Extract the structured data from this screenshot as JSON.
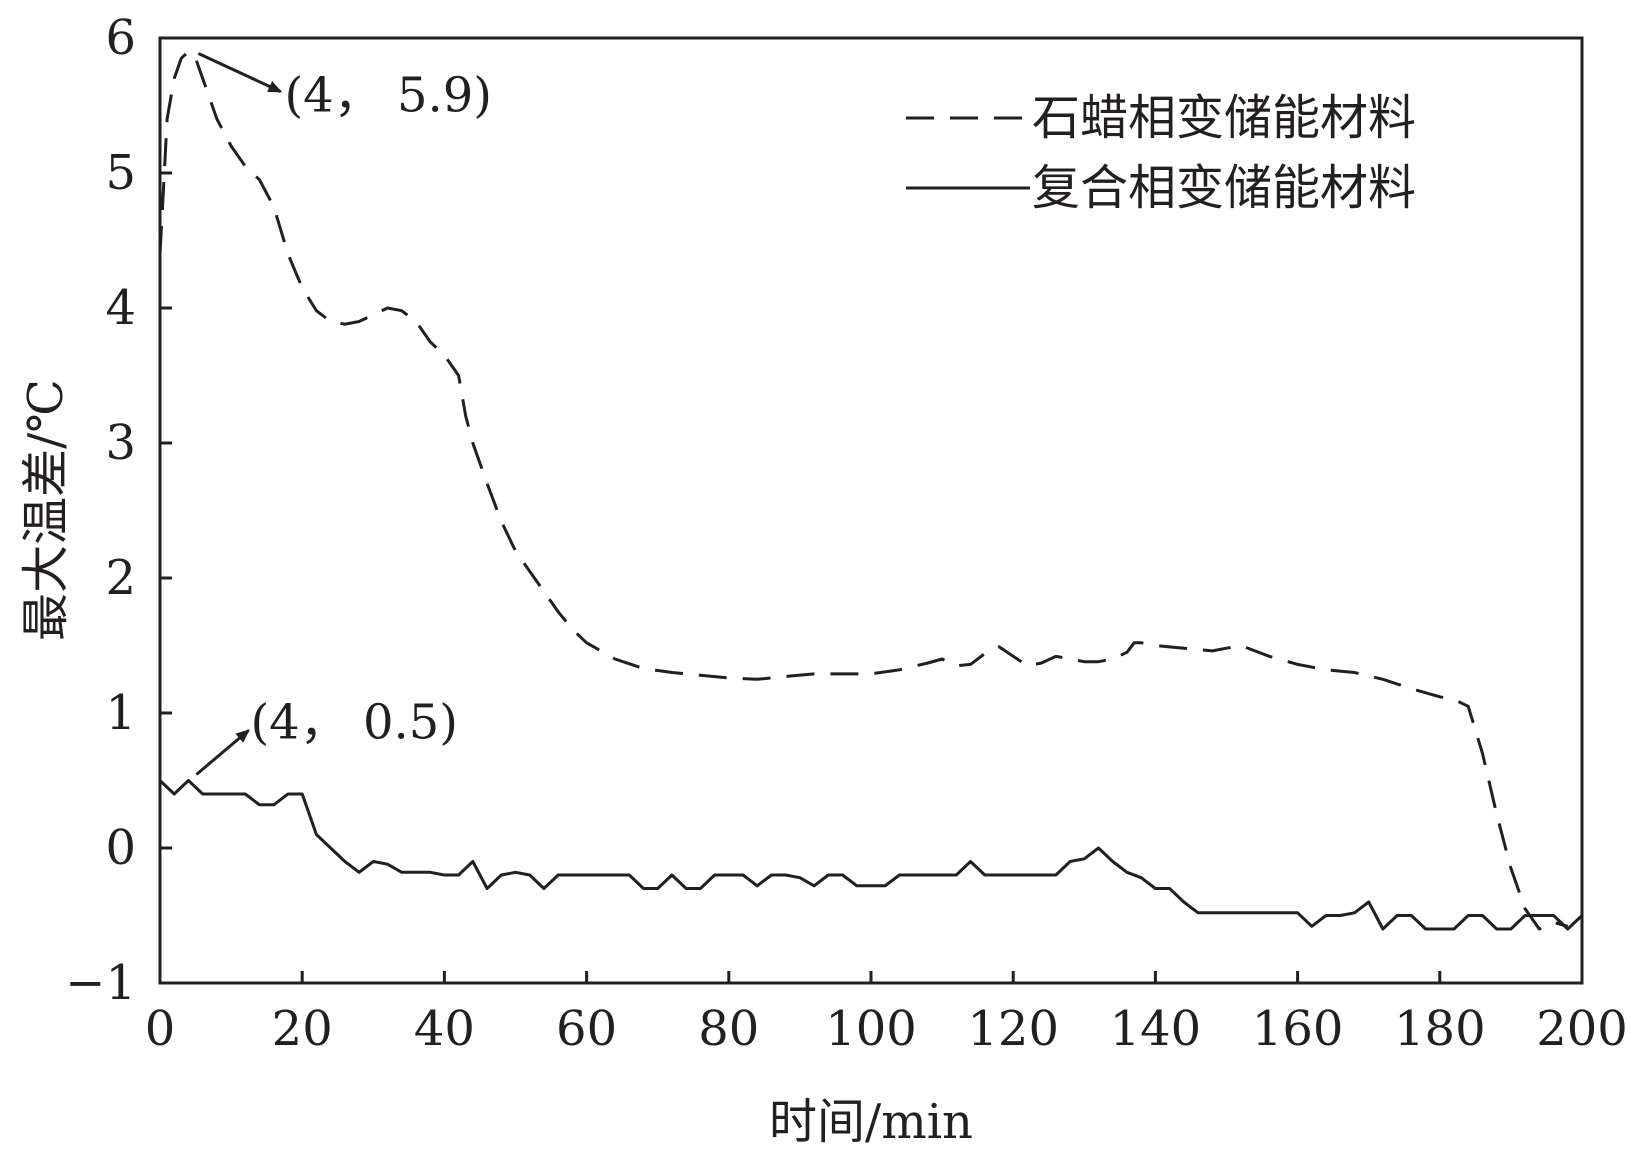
{
  "chart_data": {
    "type": "line",
    "xlabel": "时间/min",
    "ylabel": "最大温差/℃",
    "xlim": [
      0,
      200
    ],
    "ylim": [
      -1,
      6
    ],
    "xticks": [
      0,
      20,
      40,
      60,
      80,
      100,
      120,
      140,
      160,
      180,
      200
    ],
    "yticks": [
      -1,
      0,
      1,
      2,
      3,
      4,
      5,
      6
    ],
    "ytick_labels": [
      "−1",
      "0",
      "1",
      "2",
      "3",
      "4",
      "5",
      "6"
    ],
    "grid": false,
    "legend_position": "top-right",
    "series": [
      {
        "name": "石蜡相变储能材料",
        "style": "dashed",
        "color": "#231f20",
        "x": [
          0,
          0.5,
          1,
          2,
          3,
          4,
          5,
          6,
          8,
          10,
          12,
          14,
          16,
          18,
          20,
          22,
          24,
          26,
          28,
          30,
          32,
          34,
          36,
          38,
          40,
          42,
          43,
          44,
          46,
          48,
          50,
          52,
          54,
          56,
          58,
          60,
          64,
          68,
          72,
          76,
          80,
          84,
          88,
          92,
          96,
          100,
          104,
          108,
          110,
          112,
          114,
          116,
          118,
          120,
          122,
          124,
          126,
          128,
          130,
          132,
          134,
          136,
          137,
          138,
          140,
          144,
          148,
          150,
          152,
          154,
          156,
          160,
          164,
          168,
          172,
          176,
          180,
          182,
          184,
          186,
          188,
          190,
          192,
          194,
          196,
          198
        ],
        "y": [
          4.4,
          4.9,
          5.4,
          5.7,
          5.85,
          5.9,
          5.85,
          5.7,
          5.4,
          5.2,
          5.05,
          4.95,
          4.75,
          4.4,
          4.15,
          3.98,
          3.9,
          3.88,
          3.9,
          3.95,
          4.0,
          3.98,
          3.9,
          3.75,
          3.65,
          3.5,
          3.2,
          3.0,
          2.7,
          2.42,
          2.2,
          2.05,
          1.9,
          1.75,
          1.62,
          1.52,
          1.4,
          1.33,
          1.3,
          1.28,
          1.26,
          1.25,
          1.27,
          1.29,
          1.29,
          1.29,
          1.32,
          1.37,
          1.4,
          1.35,
          1.36,
          1.44,
          1.49,
          1.42,
          1.35,
          1.37,
          1.42,
          1.4,
          1.38,
          1.38,
          1.4,
          1.45,
          1.52,
          1.52,
          1.5,
          1.48,
          1.46,
          1.48,
          1.5,
          1.46,
          1.42,
          1.36,
          1.32,
          1.3,
          1.25,
          1.18,
          1.12,
          1.1,
          1.05,
          0.7,
          0.25,
          -0.15,
          -0.45,
          -0.6,
          -0.55,
          -0.58
        ]
      },
      {
        "name": "复合相变储能材料",
        "style": "solid",
        "color": "#231f20",
        "x": [
          0,
          2,
          4,
          6,
          8,
          10,
          12,
          14,
          16,
          18,
          20,
          22,
          24,
          26,
          28,
          30,
          32,
          34,
          36,
          38,
          40,
          42,
          44,
          46,
          48,
          50,
          52,
          54,
          56,
          58,
          60,
          62,
          64,
          66,
          68,
          70,
          72,
          74,
          76,
          78,
          80,
          82,
          84,
          86,
          88,
          90,
          92,
          94,
          96,
          98,
          100,
          102,
          104,
          106,
          108,
          110,
          112,
          114,
          116,
          118,
          120,
          122,
          124,
          126,
          128,
          130,
          132,
          134,
          136,
          138,
          140,
          142,
          144,
          146,
          148,
          150,
          152,
          154,
          156,
          158,
          160,
          162,
          164,
          166,
          168,
          170,
          172,
          174,
          176,
          178,
          180,
          182,
          184,
          186,
          188,
          190,
          192,
          194,
          196,
          198,
          200
        ],
        "y": [
          0.5,
          0.4,
          0.5,
          0.4,
          0.4,
          0.4,
          0.4,
          0.32,
          0.32,
          0.4,
          0.4,
          0.1,
          0.0,
          -0.1,
          -0.18,
          -0.1,
          -0.12,
          -0.18,
          -0.18,
          -0.18,
          -0.2,
          -0.2,
          -0.1,
          -0.3,
          -0.2,
          -0.18,
          -0.2,
          -0.3,
          -0.2,
          -0.2,
          -0.2,
          -0.2,
          -0.2,
          -0.2,
          -0.3,
          -0.3,
          -0.2,
          -0.3,
          -0.3,
          -0.2,
          -0.2,
          -0.2,
          -0.28,
          -0.2,
          -0.2,
          -0.22,
          -0.28,
          -0.2,
          -0.2,
          -0.28,
          -0.28,
          -0.28,
          -0.2,
          -0.2,
          -0.2,
          -0.2,
          -0.2,
          -0.1,
          -0.2,
          -0.2,
          -0.2,
          -0.2,
          -0.2,
          -0.2,
          -0.1,
          -0.08,
          0.0,
          -0.1,
          -0.18,
          -0.22,
          -0.3,
          -0.3,
          -0.4,
          -0.48,
          -0.48,
          -0.48,
          -0.48,
          -0.48,
          -0.48,
          -0.48,
          -0.48,
          -0.58,
          -0.5,
          -0.5,
          -0.48,
          -0.4,
          -0.6,
          -0.5,
          -0.5,
          -0.6,
          -0.6,
          -0.6,
          -0.5,
          -0.5,
          -0.6,
          -0.6,
          -0.5,
          -0.5,
          -0.5,
          -0.6,
          -0.5
        ]
      }
    ],
    "annotations": [
      {
        "text": "(4， 5.9)",
        "x": 4,
        "y": 5.9
      },
      {
        "text": "(4， 0.5)",
        "x": 4,
        "y": 0.5
      }
    ]
  }
}
